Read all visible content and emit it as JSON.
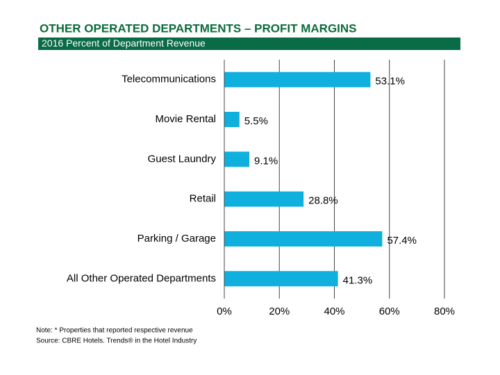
{
  "chart_data": {
    "type": "bar",
    "orientation": "horizontal",
    "title": "OTHER OPERATED DEPARTMENTS – PROFIT MARGINS",
    "subtitle": "2016 Percent of Department Revenue",
    "categories": [
      "Telecommunications",
      "Movie Rental",
      "Guest Laundry",
      "Retail",
      "Parking / Garage",
      "All Other Operated Departments"
    ],
    "values": [
      53.1,
      5.5,
      9.1,
      28.8,
      57.4,
      41.3
    ],
    "value_labels": [
      "53.1%",
      "5.5%",
      "9.1%",
      "28.8%",
      "57.4%",
      "41.3%"
    ],
    "color": "#0fb0dd",
    "xlim": [
      0,
      80
    ],
    "xticks": [
      {
        "value": 0,
        "label": "0%"
      },
      {
        "value": 20,
        "label": "20%"
      },
      {
        "value": 40,
        "label": "40%"
      },
      {
        "value": 60,
        "label": "60%"
      },
      {
        "value": 80,
        "label": "80%"
      }
    ],
    "grid": true,
    "notes": [
      "Note: * Properties that reported respective revenue",
      "Source: CBRE  Hotels. Trends® in the Hotel Industry"
    ]
  }
}
